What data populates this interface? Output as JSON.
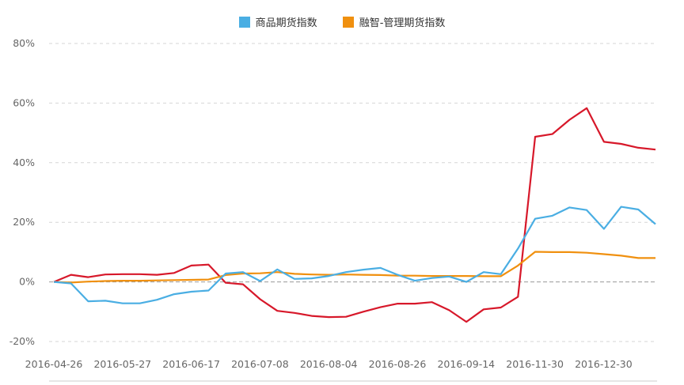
{
  "legend": {
    "position": "top-center",
    "items": [
      {
        "name": "商品期货指数",
        "color": "#4aaee3"
      },
      {
        "name": "融智-管理期货指数",
        "color": "#f0900f"
      }
    ]
  },
  "chart_data": {
    "type": "line",
    "title": "",
    "xlabel": "",
    "ylabel": "",
    "ylim": [
      -20,
      80
    ],
    "y_ticks": [
      "-20%",
      "0%",
      "20%",
      "40%",
      "60%",
      "80%"
    ],
    "y_tick_values": [
      -20,
      0,
      20,
      40,
      60,
      80
    ],
    "x_ticks": [
      "2016-04-26",
      "2016-05-27",
      "2016-06-17",
      "2016-07-08",
      "2016-08-04",
      "2016-08-26",
      "2016-09-14",
      "2016-11-30",
      "2016-12-30"
    ],
    "grid": true,
    "zero_line": true,
    "series": [
      {
        "name": "",
        "color": "#d7182a",
        "values": [
          0,
          2.4,
          1.6,
          2.5,
          2.6,
          2.6,
          2.4,
          3.0,
          5.5,
          5.8,
          -0.3,
          -0.8,
          -5.8,
          -9.7,
          -10.4,
          -11.4,
          -11.8,
          -11.7,
          -10.0,
          -8.5,
          -7.3,
          -7.3,
          -6.8,
          -9.5,
          -13.4,
          -9.2,
          -8.6,
          -5.0,
          48.7,
          49.6,
          54.4,
          58.3,
          47.0,
          46.3,
          45.0,
          44.4
        ]
      },
      {
        "name": "商品期货指数",
        "color": "#4aaee3",
        "values": [
          0,
          -0.5,
          -6.5,
          -6.3,
          -7.2,
          -7.2,
          -6.0,
          -4.1,
          -3.3,
          -2.9,
          2.8,
          3.3,
          0.3,
          4.2,
          1.0,
          1.2,
          2.0,
          3.3,
          4.1,
          4.7,
          2.4,
          0.4,
          1.3,
          1.8,
          0.0,
          3.3,
          2.6,
          11.2,
          21.2,
          22.2,
          25.0,
          24.1,
          17.8,
          25.2,
          24.3,
          19.4
        ]
      },
      {
        "name": "融智-管理期货指数",
        "color": "#f0900f",
        "values": [
          0,
          -0.2,
          0.1,
          0.3,
          0.4,
          0.4,
          0.5,
          0.6,
          0.7,
          0.8,
          2.3,
          2.8,
          2.9,
          3.3,
          2.7,
          2.5,
          2.4,
          2.5,
          2.4,
          2.3,
          2.1,
          2.1,
          2.0,
          2.0,
          2.0,
          1.9,
          1.9,
          5.5,
          10.1,
          10.0,
          10.0,
          9.8,
          9.3,
          8.8,
          8.0,
          8.0
        ]
      }
    ]
  }
}
